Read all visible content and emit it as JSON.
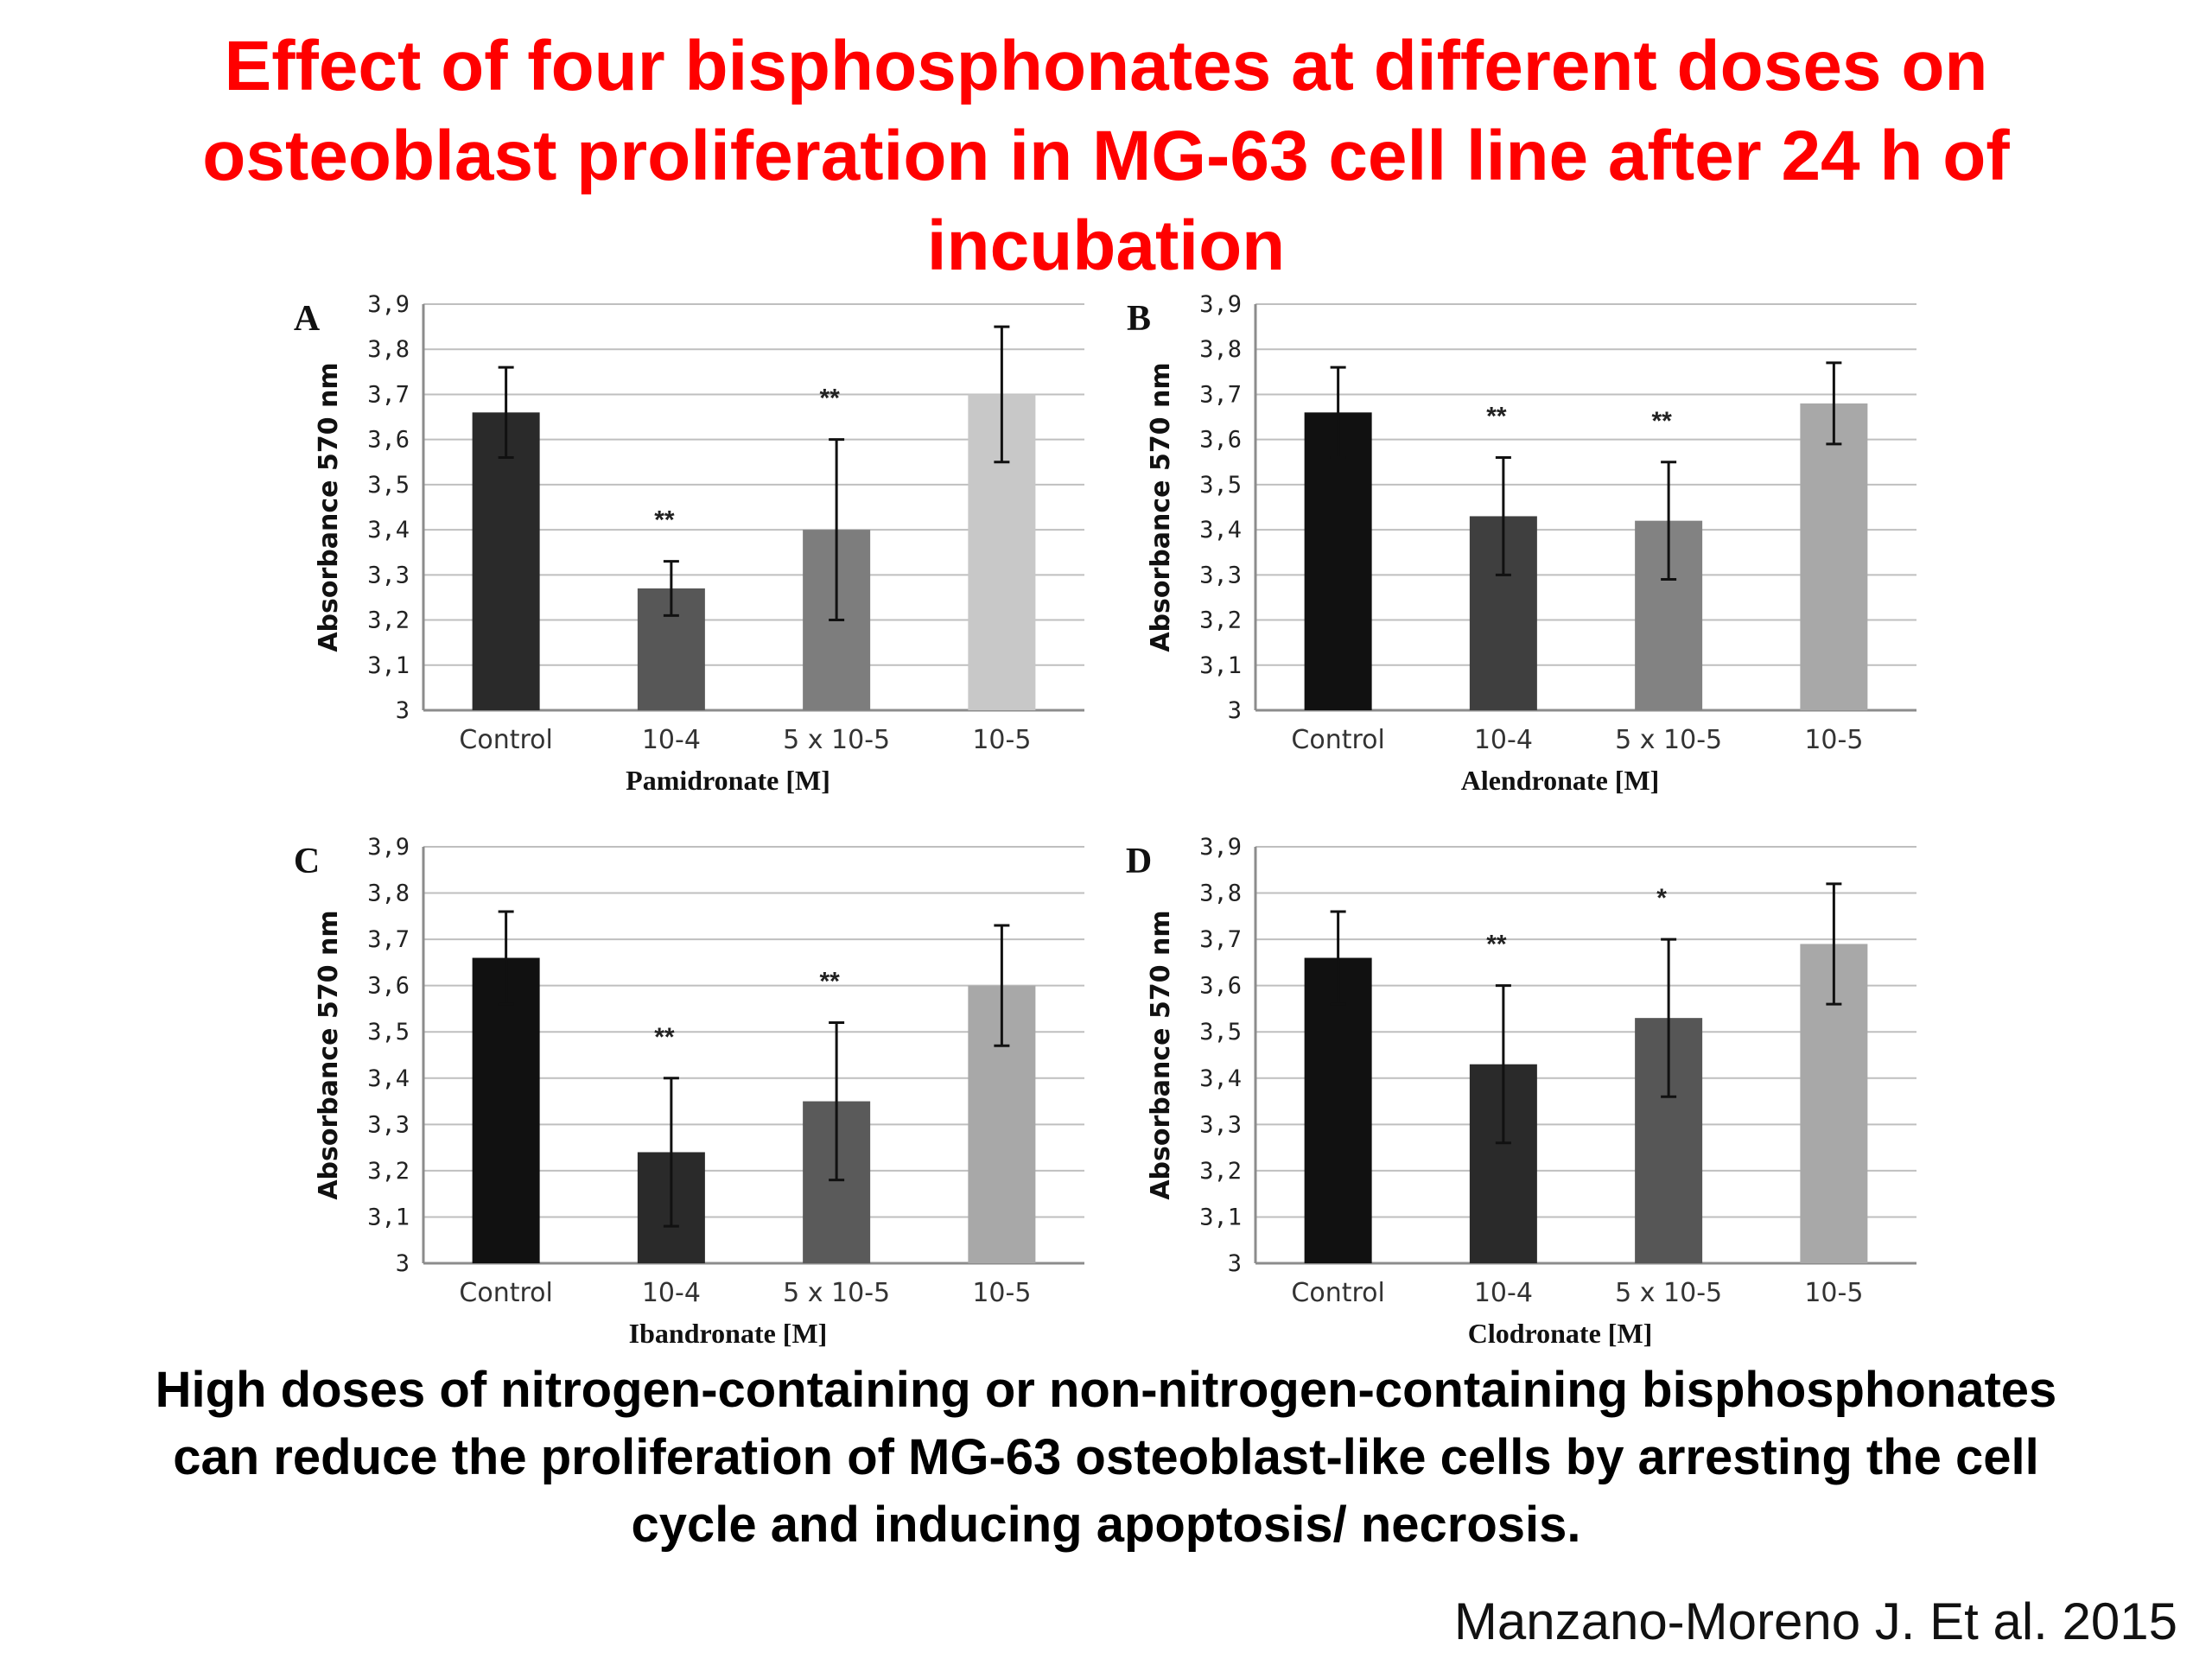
{
  "title": {
    "lines": [
      "Effect of four bisphosphonates at different doses on",
      "osteoblast proliferation in MG-63 cell line after 24 h of",
      "incubation"
    ]
  },
  "caption": {
    "lines": [
      "High doses of nitrogen-containing or non-nitrogen-containing bisphosphonates",
      "can reduce the proliferation of MG-63 osteoblast-like cells by arresting the cell",
      "cycle and inducing apoptosis/ necrosis."
    ]
  },
  "citation": "Manzano-Moreno J. Et al. 2015",
  "colors": {
    "title": "#ff0000",
    "grid": "#bfbfbf",
    "axis": "#8c8c8c"
  },
  "chart_data": [
    {
      "type": "bar",
      "panel": "A",
      "categories": [
        "Control",
        "10-4",
        "5 x 10-5",
        "10-5"
      ],
      "values": [
        3.66,
        3.27,
        3.4,
        3.7
      ],
      "errors": [
        0.1,
        0.06,
        0.2,
        0.15
      ],
      "significance": [
        "",
        "**",
        "**",
        ""
      ],
      "bar_colors": [
        "#2a2a2a",
        "#575757",
        "#7d7d7d",
        "#c8c8c8"
      ],
      "xlabel": "Pamidronate  [M]",
      "ylabel": "Absorbance  570 nm",
      "ylim": [
        3,
        3.9
      ],
      "yticks": [
        "3",
        "3,1",
        "3,2",
        "3,3",
        "3,4",
        "3,5",
        "3,6",
        "3,7",
        "3,8",
        "3,9"
      ],
      "grid": true
    },
    {
      "type": "bar",
      "panel": "B",
      "categories": [
        "Control",
        "10-4",
        "5 x 10-5",
        "10-5"
      ],
      "values": [
        3.66,
        3.43,
        3.42,
        3.68
      ],
      "errors": [
        0.1,
        0.13,
        0.13,
        0.09
      ],
      "significance": [
        "",
        "**",
        "**",
        ""
      ],
      "bar_colors": [
        "#111111",
        "#3f3f3f",
        "#828282",
        "#a8a8a8"
      ],
      "xlabel": "Alendronate  [M]",
      "ylabel": "Absorbance  570 nm",
      "ylim": [
        3,
        3.9
      ],
      "yticks": [
        "3",
        "3,1",
        "3,2",
        "3,3",
        "3,4",
        "3,5",
        "3,6",
        "3,7",
        "3,8",
        "3,9"
      ],
      "grid": true
    },
    {
      "type": "bar",
      "panel": "C",
      "categories": [
        "Control",
        "10-4",
        "5 x 10-5",
        "10-5"
      ],
      "values": [
        3.66,
        3.24,
        3.35,
        3.6
      ],
      "errors": [
        0.1,
        0.16,
        0.17,
        0.13
      ],
      "significance": [
        "",
        "**",
        "**",
        ""
      ],
      "bar_colors": [
        "#111111",
        "#2a2a2a",
        "#5a5a5a",
        "#a8a8a8"
      ],
      "xlabel": "Ibandronate  [M]",
      "ylabel": "Absorbance  570 nm",
      "ylim": [
        3,
        3.9
      ],
      "yticks": [
        "3",
        "3,1",
        "3,2",
        "3,3",
        "3,4",
        "3,5",
        "3,6",
        "3,7",
        "3,8",
        "3,9"
      ],
      "grid": true
    },
    {
      "type": "bar",
      "panel": "D",
      "categories": [
        "Control",
        "10-4",
        "5 x 10-5",
        "10-5"
      ],
      "values": [
        3.66,
        3.43,
        3.53,
        3.69
      ],
      "errors": [
        0.1,
        0.17,
        0.17,
        0.13
      ],
      "significance": [
        "",
        "**",
        "*",
        ""
      ],
      "bar_colors": [
        "#111111",
        "#2a2a2a",
        "#565656",
        "#a8a8a8"
      ],
      "xlabel": "Clodronate  [M]",
      "ylabel": "Absorbance  570 nm",
      "ylim": [
        3,
        3.9
      ],
      "yticks": [
        "3",
        "3,1",
        "3,2",
        "3,3",
        "3,4",
        "3,5",
        "3,6",
        "3,7",
        "3,8",
        "3,9"
      ],
      "grid": true
    }
  ]
}
